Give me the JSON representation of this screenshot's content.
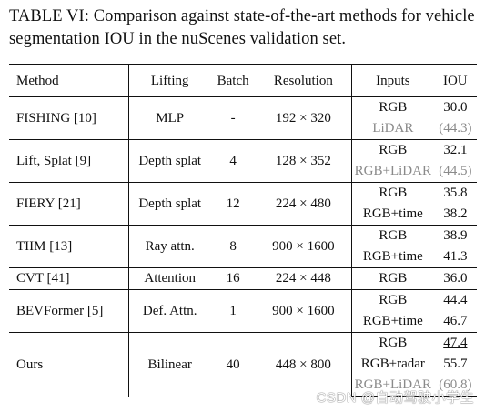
{
  "caption": "TABLE VI: Comparison against state-of-the-art methods for vehicle segmentation IOU in the nuScenes validation set.",
  "headers": {
    "method": "Method",
    "lifting": "Lifting",
    "batch": "Batch",
    "resolution": "Resolution",
    "inputs": "Inputs",
    "iou": "IOU"
  },
  "rows": [
    {
      "method": "FISHING [10]",
      "lifting": "MLP",
      "batch": "-",
      "resolution": "192 × 320",
      "entries": [
        {
          "input": "RGB",
          "iou": "30.0"
        },
        {
          "input": "LiDAR",
          "iou": "(44.3)"
        }
      ]
    },
    {
      "method": "Lift, Splat [9]",
      "lifting": "Depth splat",
      "batch": "4",
      "resolution": "128 × 352",
      "entries": [
        {
          "input": "RGB",
          "iou": "32.1"
        },
        {
          "input": "RGB+LiDAR",
          "iou": "(44.5)"
        }
      ]
    },
    {
      "method": "FIERY [21]",
      "lifting": "Depth splat",
      "batch": "12",
      "resolution": "224 × 480",
      "entries": [
        {
          "input": "RGB",
          "iou": "35.8"
        },
        {
          "input": "RGB+time",
          "iou": "38.2"
        }
      ]
    },
    {
      "method": "TIIM [13]",
      "lifting": "Ray attn.",
      "batch": "8",
      "resolution": "900 × 1600",
      "entries": [
        {
          "input": "RGB",
          "iou": "38.9"
        },
        {
          "input": "RGB+time",
          "iou": "41.3"
        }
      ]
    },
    {
      "method": "CVT [41]",
      "lifting": "Attention",
      "batch": "16",
      "resolution": "224 × 448",
      "entries": [
        {
          "input": "RGB",
          "iou": "36.0"
        }
      ]
    },
    {
      "method": "BEVFormer [5]",
      "lifting": "Def. Attn.",
      "batch": "1",
      "resolution": "900 × 1600",
      "entries": [
        {
          "input": "RGB",
          "iou": "44.4"
        },
        {
          "input": "RGB+time",
          "iou": "46.7"
        }
      ]
    },
    {
      "method": "Ours",
      "lifting": "Bilinear",
      "batch": "40",
      "resolution": "448 × 800",
      "entries": [
        {
          "input": "RGB",
          "iou": "47.4"
        },
        {
          "input": "RGB+radar",
          "iou": "55.7"
        },
        {
          "input": "RGB+LiDAR",
          "iou": "(60.8)"
        }
      ]
    }
  ],
  "watermark": "CSDN @自动驾驶小学生"
}
